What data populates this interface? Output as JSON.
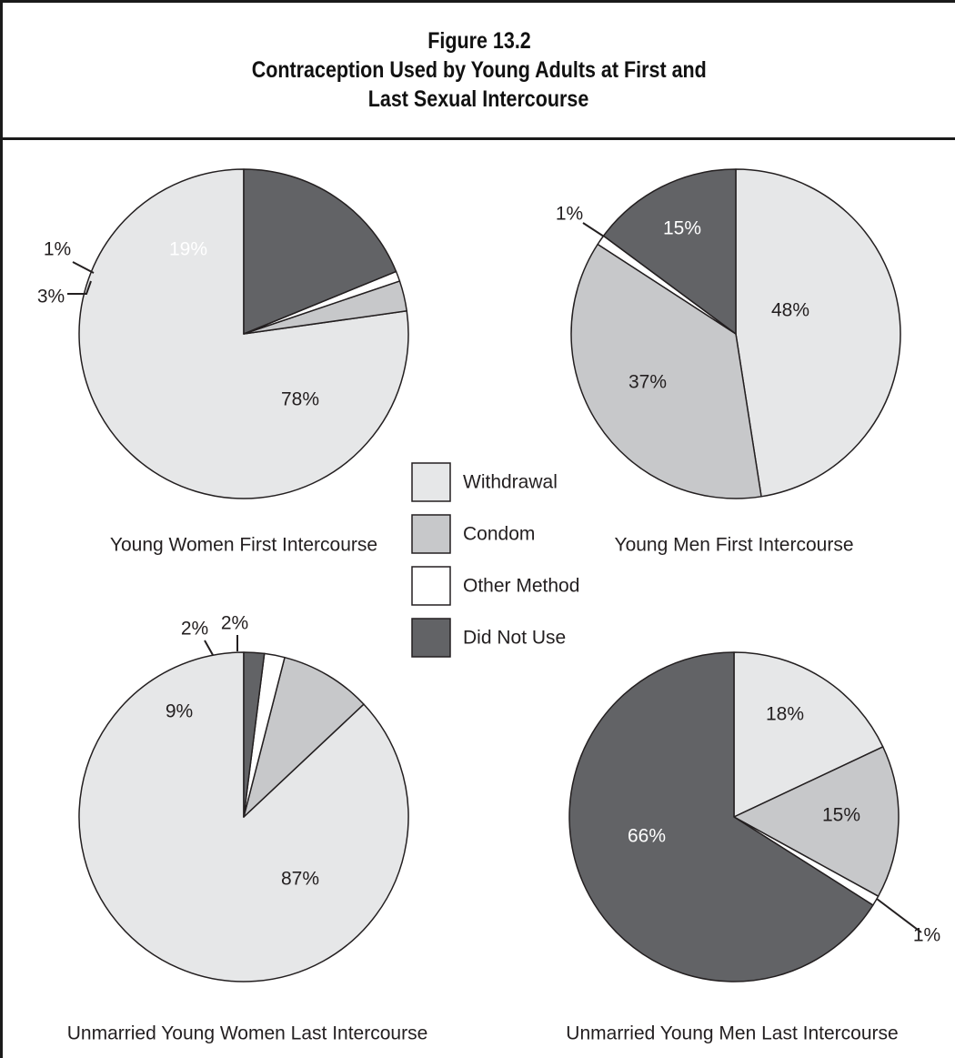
{
  "figure": {
    "label": "Figure 13.2",
    "title_line1": "Contraception Used by Young Adults at First and",
    "title_line2": "Last Sexual Intercourse"
  },
  "colors": {
    "Withdrawal": "#e6e7e8",
    "Condom": "#c7c8ca",
    "Other Method": "#ffffff",
    "Did Not Use": "#626366",
    "outline": "#231f20"
  },
  "legend": {
    "items": [
      "Withdrawal",
      "Condom",
      "Other Method",
      "Did Not Use"
    ]
  },
  "chart_data": [
    {
      "type": "pie",
      "title": "Young Women First Intercourse",
      "categories": [
        "Withdrawal",
        "Condom",
        "Other Method",
        "Did Not Use"
      ],
      "values": [
        78,
        3,
        1,
        19
      ],
      "labels": [
        "78%",
        "3%",
        "1%",
        "19%"
      ],
      "legend_position": "center"
    },
    {
      "type": "pie",
      "title": "Young Men First Intercourse",
      "categories": [
        "Withdrawal",
        "Condom",
        "Other Method",
        "Did Not Use"
      ],
      "values": [
        48,
        37,
        1,
        15
      ],
      "labels": [
        "48%",
        "37%",
        "1%",
        "15%"
      ],
      "legend_position": "center"
    },
    {
      "type": "pie",
      "title": "Unmarried Young Women Last Intercourse",
      "categories": [
        "Withdrawal",
        "Condom",
        "Other Method",
        "Did Not Use"
      ],
      "values": [
        87,
        9,
        2,
        2
      ],
      "labels": [
        "87%",
        "9%",
        "2%",
        "2%"
      ],
      "legend_position": "center"
    },
    {
      "type": "pie",
      "title": "Unmarried Young Men Last Intercourse",
      "categories": [
        "Withdrawal",
        "Condom",
        "Other Method",
        "Did Not Use"
      ],
      "values": [
        18,
        15,
        1,
        66
      ],
      "labels": [
        "18%",
        "15%",
        "1%",
        "66%"
      ],
      "legend_position": "center"
    }
  ]
}
